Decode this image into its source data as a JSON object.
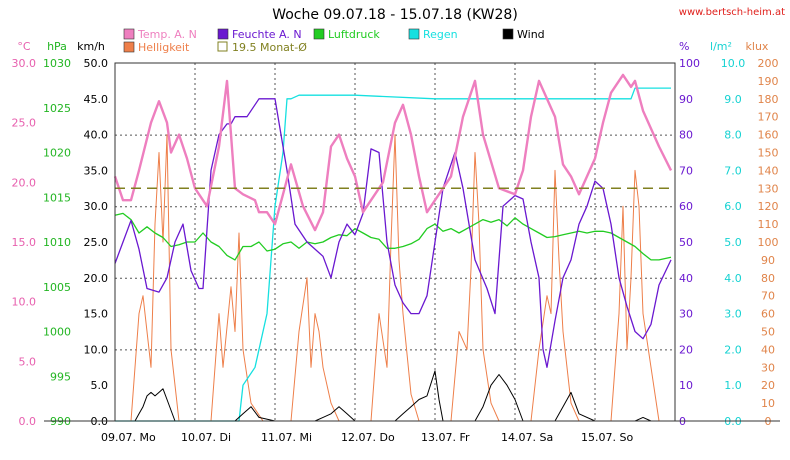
{
  "chart_data": {
    "type": "line",
    "title": "Woche 09.07.18 - 15.07.18 (KW28)",
    "source": "www.bertsch-heim.at",
    "grid": true,
    "x_range": [
      0,
      7
    ],
    "x_tick_labels": [
      "09.07. Mo",
      "10.07. Di",
      "11.07. Mi",
      "12.07. Do",
      "13.07. Fr",
      "14.07. Sa",
      "15.07. So"
    ],
    "axes": [
      {
        "id": "temp",
        "unit": "°C",
        "min": 0,
        "max": 30,
        "ticks": [
          "0.0",
          "5.0",
          "10.0",
          "15.0",
          "20.0",
          "25.0",
          "30.0"
        ],
        "color": "#e75fae"
      },
      {
        "id": "press",
        "unit": "hPa",
        "min": 990,
        "max": 1030,
        "ticks": [
          "990",
          "995",
          "1000",
          "1005",
          "1010",
          "1015",
          "1020",
          "1025",
          "1030"
        ],
        "color": "#22b522"
      },
      {
        "id": "wind",
        "unit": "km/h",
        "min": 0,
        "max": 50,
        "ticks": [
          "0.0",
          "5.0",
          "10.0",
          "15.0",
          "20.0",
          "25.0",
          "30.0",
          "35.0",
          "40.0",
          "45.0",
          "50.0"
        ],
        "color": "#000000"
      },
      {
        "id": "hum",
        "unit": "%",
        "min": 0,
        "max": 100,
        "ticks": [
          "0",
          "10",
          "20",
          "30",
          "40",
          "50",
          "60",
          "70",
          "80",
          "90",
          "100"
        ],
        "color": "#6a18d0"
      },
      {
        "id": "rain",
        "unit": "l/m²",
        "min": 0,
        "max": 10,
        "ticks": [
          "0.0",
          "1.0",
          "2.0",
          "3.0",
          "4.0",
          "5.0",
          "6.0",
          "7.0",
          "8.0",
          "9.0",
          "10.0"
        ],
        "color": "#16d2d2"
      },
      {
        "id": "lux",
        "unit": "klux",
        "min": 0,
        "max": 200,
        "ticks": [
          "0",
          "10",
          "20",
          "30",
          "40",
          "50",
          "60",
          "70",
          "80",
          "90",
          "100",
          "110",
          "120",
          "130",
          "140",
          "150",
          "160",
          "170",
          "180",
          "190",
          "200"
        ],
        "color": "#e0844a"
      }
    ],
    "legend": [
      {
        "name": "Temp. A. N",
        "color": "#ee7fbf",
        "style": "box"
      },
      {
        "name": "Feuchte A. N",
        "color": "#6a18d0",
        "style": "box"
      },
      {
        "name": "Luftdruck",
        "color": "#22cc22",
        "style": "box"
      },
      {
        "name": "Regen",
        "color": "#16e0e0",
        "style": "box"
      },
      {
        "name": "Wind",
        "color": "#000000",
        "style": "box"
      },
      {
        "name": "Helligkeit",
        "color": "#ee7f4a",
        "style": "box"
      },
      {
        "name": "19.5 Monat-Ø",
        "color": "#808020",
        "style": "outline"
      }
    ],
    "reference_line": {
      "name": "19.5 Monat-Ø",
      "axis": "temp",
      "value": 19.5
    },
    "series": [
      {
        "name": "Temp. A. N",
        "axis": "temp",
        "color": "#ee7fbf",
        "x": [
          0,
          0.1,
          0.2,
          0.3,
          0.45,
          0.55,
          0.65,
          0.7,
          0.8,
          0.9,
          1.0,
          1.15,
          1.3,
          1.4,
          1.5,
          1.6,
          1.75,
          1.8,
          1.9,
          2.0,
          2.1,
          2.2,
          2.35,
          2.5,
          2.6,
          2.7,
          2.8,
          2.9,
          3.0,
          3.1,
          3.2,
          3.35,
          3.5,
          3.6,
          3.7,
          3.8,
          3.9,
          4.0,
          4.2,
          4.35,
          4.5,
          4.6,
          4.8,
          5.0,
          5.1,
          5.2,
          5.3,
          5.5,
          5.6,
          5.7,
          5.8,
          6.0,
          6.1,
          6.2,
          6.35,
          6.45,
          6.5,
          6.6,
          6.7,
          6.8,
          6.95
        ],
        "y": [
          20.5,
          18.5,
          18.5,
          21,
          25,
          26.8,
          25,
          22.5,
          24,
          22,
          19.5,
          18,
          23,
          28.5,
          19.5,
          19,
          18.5,
          17.5,
          17.5,
          16.5,
          19,
          21.5,
          18,
          16,
          17.5,
          23,
          24,
          22,
          20.5,
          17.5,
          18.5,
          20,
          25,
          26.5,
          24,
          20.5,
          17.5,
          18.5,
          20.5,
          25.5,
          28.5,
          24,
          19.5,
          19,
          21,
          25.5,
          28.5,
          25.5,
          21.5,
          20.5,
          19,
          22,
          25,
          27.5,
          29,
          28,
          28.5,
          26,
          24.5,
          23,
          21
        ]
      },
      {
        "name": "Feuchte A. N",
        "axis": "hum",
        "color": "#6a18d0",
        "x": [
          0,
          0.1,
          0.2,
          0.3,
          0.4,
          0.55,
          0.65,
          0.75,
          0.85,
          0.95,
          1.05,
          1.1,
          1.2,
          1.3,
          1.4,
          1.45,
          1.5,
          1.65,
          1.8,
          2.0,
          2.15,
          2.25,
          2.4,
          2.6,
          2.7,
          2.8,
          2.9,
          3.0,
          3.1,
          3.2,
          3.3,
          3.4,
          3.5,
          3.6,
          3.7,
          3.8,
          3.9,
          4.0,
          4.1,
          4.25,
          4.35,
          4.5,
          4.65,
          4.75,
          4.85,
          5.0,
          5.1,
          5.2,
          5.3,
          5.35,
          5.4,
          5.5,
          5.6,
          5.7,
          5.8,
          5.9,
          6.0,
          6.1,
          6.2,
          6.3,
          6.4,
          6.5,
          6.6,
          6.7,
          6.8,
          6.95
        ],
        "y": [
          44,
          50,
          56,
          48,
          37,
          36,
          40,
          50,
          55,
          42,
          37,
          37,
          70,
          80,
          83,
          83,
          85,
          85,
          90,
          90,
          70,
          55,
          50,
          46,
          40,
          50,
          55,
          52,
          58,
          76,
          75,
          50,
          38,
          33,
          30,
          30,
          35,
          50,
          65,
          75,
          65,
          45,
          37,
          30,
          60,
          63,
          62,
          50,
          40,
          20,
          15,
          28,
          40,
          45,
          55,
          60,
          67,
          65,
          55,
          40,
          32,
          25,
          23,
          27,
          38,
          45
        ]
      },
      {
        "name": "Luftdruck",
        "axis": "press",
        "color": "#22cc22",
        "x": [
          0,
          0.1,
          0.2,
          0.3,
          0.4,
          0.5,
          0.6,
          0.7,
          0.8,
          0.9,
          1.0,
          1.1,
          1.2,
          1.3,
          1.4,
          1.5,
          1.6,
          1.7,
          1.8,
          1.9,
          2.0,
          2.1,
          2.2,
          2.3,
          2.4,
          2.5,
          2.6,
          2.7,
          2.8,
          2.9,
          3.0,
          3.1,
          3.2,
          3.3,
          3.4,
          3.5,
          3.6,
          3.7,
          3.8,
          3.9,
          4.0,
          4.1,
          4.2,
          4.3,
          4.4,
          4.5,
          4.6,
          4.7,
          4.8,
          4.9,
          5.0,
          5.1,
          5.2,
          5.3,
          5.4,
          5.5,
          5.6,
          5.7,
          5.8,
          5.9,
          6.0,
          6.1,
          6.2,
          6.3,
          6.4,
          6.5,
          6.6,
          6.7,
          6.8,
          6.95
        ],
        "y": [
          1013,
          1013.2,
          1012.5,
          1011,
          1011.7,
          1011,
          1010.5,
          1009.5,
          1009.7,
          1010,
          1010,
          1011,
          1010,
          1009.5,
          1008.5,
          1008,
          1009.5,
          1009.5,
          1010,
          1009,
          1009.2,
          1009.8,
          1010,
          1009.3,
          1010,
          1009.8,
          1010,
          1010.5,
          1010.8,
          1010.7,
          1011.5,
          1011,
          1010.5,
          1010.3,
          1009.3,
          1009.3,
          1009.5,
          1009.8,
          1010.3,
          1011.5,
          1012,
          1011.2,
          1011.5,
          1011,
          1011.5,
          1012,
          1012.5,
          1012.2,
          1012.5,
          1011.8,
          1012.7,
          1012,
          1011.5,
          1011,
          1010.5,
          1010.6,
          1010.8,
          1011,
          1011.2,
          1011,
          1011.2,
          1011.2,
          1011,
          1010.5,
          1010,
          1009.5,
          1008.7,
          1008,
          1008,
          1008.3
        ]
      },
      {
        "name": "Regen",
        "axis": "rain",
        "color": "#16e0e0",
        "x": [
          0,
          1.55,
          1.6,
          1.75,
          1.9,
          2.0,
          2.1,
          2.15,
          2.2,
          2.3,
          2.4,
          2.5,
          2.6,
          3.0,
          4.0,
          4.5,
          5.0,
          5.5,
          6.0,
          6.45,
          6.5,
          6.95
        ],
        "y": [
          0,
          0,
          1.0,
          1.5,
          3.0,
          6.0,
          7.5,
          9.0,
          9.0,
          9.1,
          9.1,
          9.1,
          9.1,
          9.1,
          9.0,
          9.0,
          9.0,
          9.0,
          9.0,
          9.0,
          9.3,
          9.3
        ]
      },
      {
        "name": "Wind",
        "axis": "wind",
        "color": "#000000",
        "x": [
          0,
          0.25,
          0.3,
          0.35,
          0.4,
          0.45,
          0.5,
          0.55,
          0.6,
          0.65,
          0.75,
          1.0,
          1.5,
          1.6,
          1.7,
          1.8,
          2.0,
          2.5,
          2.6,
          2.7,
          2.8,
          2.9,
          3.0,
          3.5,
          3.6,
          3.7,
          3.8,
          3.9,
          4.0,
          4.05,
          4.1,
          4.5,
          4.6,
          4.7,
          4.8,
          4.9,
          5.0,
          5.1,
          5.5,
          5.6,
          5.7,
          5.8,
          6.0,
          6.5,
          6.6,
          6.7,
          6.95
        ],
        "y": [
          0,
          0,
          1,
          2,
          3.5,
          4,
          3.5,
          4,
          4.5,
          3,
          0,
          0,
          0,
          1,
          2,
          0.5,
          0,
          0,
          0.5,
          1,
          2,
          1,
          0,
          0,
          1,
          2,
          3,
          3.5,
          7,
          3,
          0,
          0,
          2,
          5,
          6.5,
          5,
          3,
          0,
          0,
          2,
          4,
          1,
          0,
          0,
          0.5,
          0,
          0
        ]
      },
      {
        "name": "Helligkeit",
        "axis": "lux",
        "color": "#ee7f4a",
        "x": [
          0,
          0.2,
          0.3,
          0.35,
          0.45,
          0.5,
          0.55,
          0.6,
          0.65,
          0.7,
          0.8,
          1.0,
          1.2,
          1.3,
          1.35,
          1.45,
          1.5,
          1.55,
          1.6,
          1.7,
          1.85,
          2.0,
          2.2,
          2.3,
          2.4,
          2.45,
          2.5,
          2.55,
          2.6,
          2.7,
          2.8,
          2.9,
          3.0,
          3.2,
          3.3,
          3.4,
          3.45,
          3.5,
          3.55,
          3.6,
          3.7,
          3.8,
          4.0,
          4.2,
          4.3,
          4.4,
          4.45,
          4.5,
          4.55,
          4.6,
          4.7,
          4.8,
          5.0,
          5.2,
          5.3,
          5.4,
          5.45,
          5.5,
          5.55,
          5.6,
          5.7,
          5.8,
          6.0,
          6.2,
          6.3,
          6.35,
          6.4,
          6.45,
          6.5,
          6.55,
          6.6,
          6.7,
          6.8,
          6.95
        ],
        "y": [
          0,
          0,
          60,
          70,
          30,
          110,
          150,
          100,
          160,
          40,
          0,
          0,
          0,
          60,
          30,
          75,
          50,
          105,
          40,
          10,
          0,
          0,
          0,
          50,
          80,
          30,
          60,
          50,
          30,
          10,
          0,
          0,
          0,
          0,
          60,
          30,
          100,
          160,
          90,
          60,
          15,
          0,
          0,
          0,
          50,
          40,
          85,
          150,
          110,
          40,
          10,
          0,
          0,
          0,
          40,
          70,
          60,
          140,
          90,
          50,
          10,
          0,
          0,
          0,
          60,
          120,
          40,
          80,
          140,
          120,
          60,
          30,
          0,
          0
        ]
      }
    ]
  }
}
